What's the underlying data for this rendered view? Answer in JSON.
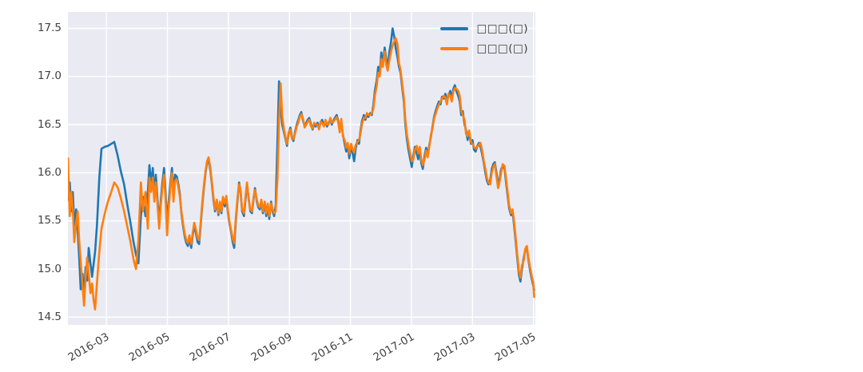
{
  "figure": {
    "background": "#ffffff",
    "axes_background": "#eaeaf2",
    "grid_color": "#ffffff",
    "tick_color": "#424242"
  },
  "legend": {
    "items": [
      {
        "label": "□□□(□)",
        "color": "#1f77b4"
      },
      {
        "label": "□□□(□)",
        "color": "#ff7f0e"
      }
    ]
  },
  "chart_data": {
    "type": "line",
    "title": "",
    "xlabel": "",
    "ylabel": "",
    "grid": true,
    "legend_position": "upper right",
    "x_unit": "months since 2016-01 (estimated from tick gridlines)",
    "xlim": [
      0.74,
      16.06
    ],
    "ylim": [
      14.42,
      17.67
    ],
    "x_ticks": [
      {
        "pos": 2,
        "label": "2016-03"
      },
      {
        "pos": 4,
        "label": "2016-05"
      },
      {
        "pos": 6,
        "label": "2016-07"
      },
      {
        "pos": 8,
        "label": "2016-09"
      },
      {
        "pos": 10,
        "label": "2016-11"
      },
      {
        "pos": 12,
        "label": "2017-01"
      },
      {
        "pos": 14,
        "label": "2017-03"
      },
      {
        "pos": 16,
        "label": "2017-05"
      }
    ],
    "y_ticks": [
      {
        "pos": 14.5,
        "label": "14.5"
      },
      {
        "pos": 15.0,
        "label": "15.0"
      },
      {
        "pos": 15.5,
        "label": "15.5"
      },
      {
        "pos": 16.0,
        "label": "16.0"
      },
      {
        "pos": 16.5,
        "label": "16.5"
      },
      {
        "pos": 17.0,
        "label": "17.0"
      },
      {
        "pos": 17.5,
        "label": "17.5"
      }
    ],
    "x": [
      0.74,
      0.8,
      0.85,
      0.9,
      0.95,
      1.01,
      1.06,
      1.11,
      1.16,
      1.22,
      1.27,
      1.32,
      1.37,
      1.42,
      1.48,
      1.53,
      1.58,
      1.63,
      1.69,
      1.77,
      1.84,
      1.95,
      2.05,
      2.16,
      2.26,
      2.37,
      2.47,
      2.58,
      2.68,
      2.79,
      2.89,
      2.97,
      3.05,
      3.13,
      3.2,
      3.28,
      3.36,
      3.41,
      3.47,
      3.52,
      3.57,
      3.62,
      3.68,
      3.73,
      3.78,
      3.83,
      3.89,
      3.94,
      3.99,
      4.04,
      4.1,
      4.15,
      4.2,
      4.25,
      4.31,
      4.36,
      4.41,
      4.46,
      4.51,
      4.57,
      4.62,
      4.67,
      4.72,
      4.78,
      4.83,
      4.88,
      4.93,
      4.99,
      5.04,
      5.09,
      5.14,
      5.2,
      5.25,
      5.3,
      5.35,
      5.41,
      5.46,
      5.51,
      5.56,
      5.62,
      5.67,
      5.72,
      5.77,
      5.82,
      5.88,
      5.93,
      5.98,
      6.03,
      6.09,
      6.14,
      6.19,
      6.24,
      6.3,
      6.35,
      6.4,
      6.45,
      6.51,
      6.56,
      6.61,
      6.66,
      6.72,
      6.77,
      6.82,
      6.87,
      6.93,
      6.98,
      7.03,
      7.08,
      7.13,
      7.19,
      7.24,
      7.29,
      7.34,
      7.4,
      7.45,
      7.5,
      7.55,
      7.61,
      7.66,
      7.71,
      7.76,
      7.82,
      7.87,
      7.92,
      7.97,
      8.03,
      8.08,
      8.13,
      8.18,
      8.24,
      8.29,
      8.34,
      8.39,
      8.44,
      8.5,
      8.55,
      8.6,
      8.65,
      8.71,
      8.76,
      8.81,
      8.86,
      8.92,
      8.97,
      9.02,
      9.07,
      9.13,
      9.18,
      9.23,
      9.28,
      9.34,
      9.39,
      9.44,
      9.49,
      9.55,
      9.6,
      9.65,
      9.7,
      9.75,
      9.81,
      9.86,
      9.91,
      9.96,
      10.02,
      10.07,
      10.12,
      10.17,
      10.23,
      10.28,
      10.33,
      10.38,
      10.44,
      10.49,
      10.54,
      10.59,
      10.65,
      10.7,
      10.75,
      10.8,
      10.86,
      10.91,
      10.96,
      11.01,
      11.06,
      11.12,
      11.17,
      11.22,
      11.27,
      11.33,
      11.38,
      11.43,
      11.48,
      11.54,
      11.59,
      11.64,
      11.69,
      11.75,
      11.8,
      11.85,
      11.9,
      11.96,
      12.01,
      12.06,
      12.11,
      12.17,
      12.22,
      12.27,
      12.32,
      12.37,
      12.43,
      12.48,
      12.53,
      12.58,
      12.64,
      12.69,
      12.74,
      12.79,
      12.85,
      12.9,
      12.95,
      13.0,
      13.06,
      13.11,
      13.16,
      13.21,
      13.27,
      13.32,
      13.37,
      13.42,
      13.48,
      13.53,
      13.58,
      13.63,
      13.68,
      13.74,
      13.79,
      13.84,
      13.89,
      13.95,
      14.0,
      14.05,
      14.1,
      14.16,
      14.21,
      14.26,
      14.31,
      14.37,
      14.42,
      14.47,
      14.52,
      14.58,
      14.63,
      14.68,
      14.73,
      14.79,
      14.84,
      14.89,
      14.94,
      14.99,
      15.05,
      15.1,
      15.15,
      15.2,
      15.26,
      15.31,
      15.36,
      15.41,
      15.47,
      15.52,
      15.57,
      15.62,
      15.68,
      15.73,
      15.78,
      15.83,
      15.89,
      15.94,
      15.99,
      16.02
    ],
    "series": [
      {
        "name": "□□□(□)",
        "color": "#1f77b4",
        "values": [
          15.72,
          15.9,
          15.6,
          15.8,
          15.45,
          15.62,
          15.4,
          15.12,
          14.79,
          14.95,
          14.7,
          15.02,
          14.88,
          15.22,
          15.05,
          14.92,
          15.05,
          15.18,
          15.45,
          15.95,
          16.25,
          16.27,
          16.28,
          16.3,
          16.32,
          16.18,
          16.02,
          15.88,
          15.68,
          15.48,
          15.28,
          15.15,
          15.06,
          15.55,
          15.75,
          15.55,
          15.8,
          16.08,
          15.88,
          16.05,
          15.78,
          15.98,
          15.7,
          15.5,
          15.7,
          15.88,
          16.05,
          15.8,
          15.45,
          15.7,
          15.9,
          16.05,
          15.78,
          15.98,
          15.96,
          15.88,
          15.78,
          15.58,
          15.45,
          15.33,
          15.27,
          15.24,
          15.32,
          15.22,
          15.35,
          15.45,
          15.38,
          15.28,
          15.26,
          15.45,
          15.65,
          15.85,
          16.0,
          16.1,
          16.14,
          16.02,
          15.88,
          15.72,
          15.6,
          15.7,
          15.56,
          15.68,
          15.58,
          15.73,
          15.65,
          15.74,
          15.6,
          15.48,
          15.38,
          15.28,
          15.22,
          15.48,
          15.72,
          15.9,
          15.8,
          15.6,
          15.55,
          15.72,
          15.88,
          15.74,
          15.6,
          15.58,
          15.72,
          15.84,
          15.7,
          15.64,
          15.62,
          15.7,
          15.58,
          15.68,
          15.55,
          15.65,
          15.52,
          15.7,
          15.6,
          15.55,
          15.66,
          16.35,
          16.95,
          16.68,
          16.5,
          16.42,
          16.35,
          16.28,
          16.4,
          16.47,
          16.37,
          16.33,
          16.42,
          16.5,
          16.55,
          16.6,
          16.63,
          16.55,
          16.48,
          16.52,
          16.55,
          16.57,
          16.5,
          16.45,
          16.5,
          16.48,
          16.52,
          16.46,
          16.52,
          16.55,
          16.49,
          16.53,
          16.48,
          16.52,
          16.55,
          16.5,
          16.54,
          16.57,
          16.6,
          16.54,
          16.44,
          16.52,
          16.4,
          16.3,
          16.22,
          16.28,
          16.15,
          16.28,
          16.2,
          16.12,
          16.25,
          16.34,
          16.3,
          16.44,
          16.54,
          16.6,
          16.55,
          16.6,
          16.58,
          16.62,
          16.6,
          16.7,
          16.85,
          16.96,
          17.1,
          17.04,
          17.25,
          17.14,
          17.3,
          17.18,
          17.1,
          17.25,
          17.36,
          17.5,
          17.42,
          17.3,
          17.2,
          17.1,
          17.04,
          16.9,
          16.74,
          16.5,
          16.35,
          16.24,
          16.14,
          16.06,
          16.18,
          16.27,
          16.2,
          16.14,
          16.24,
          16.1,
          16.04,
          16.18,
          16.26,
          16.18,
          16.28,
          16.38,
          16.48,
          16.58,
          16.64,
          16.7,
          16.74,
          16.71,
          16.79,
          16.77,
          16.82,
          16.74,
          16.8,
          16.85,
          16.77,
          16.87,
          16.91,
          16.84,
          16.8,
          16.74,
          16.6,
          16.64,
          16.5,
          16.44,
          16.34,
          16.42,
          16.3,
          16.34,
          16.24,
          16.22,
          16.28,
          16.31,
          16.27,
          16.2,
          16.1,
          16.0,
          15.92,
          15.88,
          15.92,
          16.04,
          16.09,
          16.11,
          15.99,
          15.87,
          15.94,
          16.04,
          16.07,
          16.04,
          15.9,
          15.76,
          15.63,
          15.56,
          15.6,
          15.46,
          15.3,
          15.1,
          14.94,
          14.87,
          15.0,
          15.12,
          15.2,
          15.22,
          15.1,
          14.98,
          14.9,
          14.83,
          14.78
        ]
      },
      {
        "name": "□□□(□)",
        "color": "#ff7f0e",
        "values": [
          16.15,
          15.55,
          15.8,
          15.62,
          15.28,
          15.48,
          15.6,
          15.3,
          15.08,
          14.82,
          14.62,
          14.9,
          15.12,
          14.95,
          14.75,
          14.85,
          14.68,
          14.58,
          14.85,
          15.18,
          15.42,
          15.58,
          15.7,
          15.8,
          15.9,
          15.85,
          15.74,
          15.6,
          15.45,
          15.28,
          15.1,
          15.0,
          15.3,
          15.9,
          15.6,
          15.8,
          15.42,
          15.95,
          15.8,
          15.95,
          15.7,
          15.9,
          15.65,
          15.42,
          15.65,
          15.82,
          15.98,
          15.72,
          15.35,
          15.62,
          15.85,
          16.0,
          15.7,
          15.92,
          15.93,
          15.85,
          15.75,
          15.6,
          15.48,
          15.36,
          15.3,
          15.27,
          15.35,
          15.26,
          15.38,
          15.48,
          15.42,
          15.32,
          15.3,
          15.48,
          15.68,
          15.88,
          16.02,
          16.12,
          16.16,
          16.05,
          15.9,
          15.75,
          15.62,
          15.72,
          15.58,
          15.7,
          15.6,
          15.75,
          15.68,
          15.76,
          15.62,
          15.5,
          15.4,
          15.32,
          15.27,
          15.52,
          15.75,
          15.88,
          15.82,
          15.62,
          15.58,
          15.75,
          15.9,
          15.72,
          15.62,
          15.6,
          15.74,
          15.82,
          15.72,
          15.66,
          15.64,
          15.72,
          15.6,
          15.7,
          15.58,
          15.68,
          15.55,
          15.68,
          15.62,
          15.58,
          15.6,
          15.95,
          16.55,
          16.93,
          16.6,
          16.45,
          16.37,
          16.3,
          16.42,
          16.45,
          16.35,
          16.35,
          16.4,
          16.48,
          16.52,
          16.58,
          16.61,
          16.57,
          16.47,
          16.5,
          16.53,
          16.55,
          16.48,
          16.46,
          16.52,
          16.5,
          16.5,
          16.45,
          16.53,
          16.52,
          16.48,
          16.55,
          16.5,
          16.5,
          16.57,
          16.52,
          16.53,
          16.55,
          16.58,
          16.52,
          16.42,
          16.56,
          16.38,
          16.34,
          16.26,
          16.31,
          16.2,
          16.3,
          16.24,
          16.21,
          16.29,
          16.32,
          16.34,
          16.41,
          16.51,
          16.57,
          16.57,
          16.62,
          16.6,
          16.6,
          16.62,
          16.66,
          16.8,
          16.9,
          17.04,
          17.0,
          17.18,
          17.1,
          17.26,
          17.12,
          17.06,
          17.16,
          17.26,
          17.32,
          17.36,
          17.4,
          17.34,
          17.14,
          17.07,
          16.94,
          16.78,
          16.55,
          16.4,
          16.3,
          16.2,
          16.12,
          16.14,
          16.24,
          16.28,
          16.2,
          16.27,
          16.14,
          16.08,
          16.14,
          16.23,
          16.16,
          16.26,
          16.4,
          16.46,
          16.56,
          16.61,
          16.67,
          16.71,
          16.74,
          16.77,
          16.8,
          16.78,
          16.71,
          16.82,
          16.8,
          16.74,
          16.84,
          16.88,
          16.87,
          16.85,
          16.8,
          16.65,
          16.6,
          16.55,
          16.4,
          16.38,
          16.44,
          16.32,
          16.3,
          16.27,
          16.25,
          16.27,
          16.29,
          16.31,
          16.24,
          16.12,
          16.04,
          15.95,
          15.9,
          15.88,
          16.0,
          16.06,
          16.09,
          15.95,
          15.84,
          15.91,
          16.0,
          16.09,
          16.07,
          15.94,
          15.8,
          15.66,
          15.58,
          15.62,
          15.5,
          15.34,
          15.14,
          14.98,
          14.91,
          15.04,
          15.09,
          15.21,
          15.24,
          15.12,
          15.01,
          14.93,
          14.86,
          14.71
        ]
      }
    ]
  }
}
